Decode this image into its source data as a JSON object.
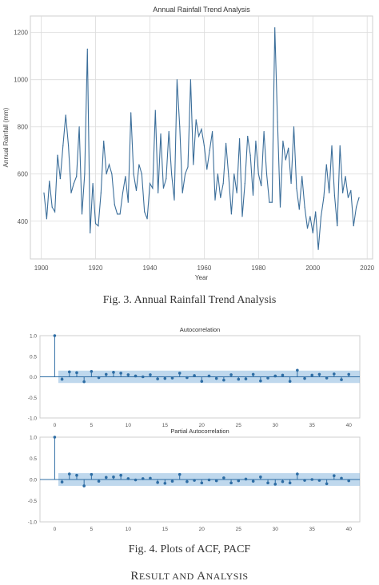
{
  "chart_data": [
    {
      "type": "line",
      "title": "Annual Rainfall Trend Analysis",
      "xlabel": "Year",
      "ylabel": "Annual Rainfall (mm)",
      "xlim": [
        1896,
        2022
      ],
      "ylim": [
        240,
        1270
      ],
      "xticks": [
        1900,
        1920,
        1940,
        1960,
        1980,
        2000,
        2020
      ],
      "yticks": [
        400,
        600,
        800,
        1000,
        1200
      ],
      "grid": true,
      "color": "#3b6e9a",
      "series": [
        {
          "x": [
            1901,
            1902,
            1903,
            1904,
            1905,
            1906,
            1907,
            1908,
            1909,
            1910,
            1911,
            1912,
            1913,
            1914,
            1915,
            1916,
            1917,
            1918,
            1919,
            1920,
            1921,
            1922,
            1923,
            1924,
            1925,
            1926,
            1927,
            1928,
            1929,
            1930,
            1931,
            1932,
            1933,
            1934,
            1935,
            1936,
            1937,
            1938,
            1939,
            1940,
            1941,
            1942,
            1943,
            1944,
            1945,
            1946,
            1947,
            1948,
            1949,
            1950,
            1951,
            1952,
            1953,
            1954,
            1955,
            1956,
            1957,
            1958,
            1959,
            1960,
            1961,
            1962,
            1963,
            1964,
            1965,
            1966,
            1967,
            1968,
            1969,
            1970,
            1971,
            1972,
            1973,
            1974,
            1975,
            1976,
            1977,
            1978,
            1979,
            1980,
            1981,
            1982,
            1983,
            1984,
            1985,
            1986,
            1987,
            1988,
            1989,
            1990,
            1991,
            1992,
            1993,
            1994,
            1995,
            1996,
            1997,
            1998,
            1999,
            2000,
            2001,
            2002,
            2003,
            2004,
            2005,
            2006,
            2007,
            2008,
            2009,
            2010,
            2011,
            2012,
            2013,
            2014,
            2015,
            2016,
            2017
          ],
          "values": [
            520,
            410,
            570,
            460,
            440,
            680,
            580,
            720,
            850,
            720,
            520,
            560,
            590,
            800,
            430,
            600,
            1130,
            350,
            560,
            390,
            380,
            520,
            740,
            600,
            640,
            600,
            470,
            430,
            430,
            520,
            590,
            480,
            860,
            600,
            530,
            640,
            600,
            440,
            410,
            560,
            540,
            870,
            520,
            770,
            540,
            580,
            780,
            600,
            490,
            1000,
            800,
            520,
            600,
            630,
            1000,
            640,
            830,
            760,
            790,
            720,
            620,
            700,
            780,
            490,
            600,
            500,
            560,
            730,
            590,
            430,
            600,
            520,
            750,
            420,
            560,
            760,
            680,
            510,
            740,
            600,
            550,
            780,
            600,
            480,
            480,
            1220,
            820,
            460,
            740,
            660,
            710,
            560,
            800,
            540,
            450,
            590,
            460,
            370,
            420,
            350,
            440,
            280,
            420,
            500,
            640,
            520,
            720,
            510,
            380,
            720,
            520,
            590,
            500,
            530,
            380,
            460,
            500
          ]
        }
      ]
    },
    {
      "type": "bar",
      "title": "Autocorrelation",
      "xlim": [
        -2,
        41.5
      ],
      "ylim": [
        -1.0,
        1.0
      ],
      "xticks": [
        0,
        5,
        10,
        15,
        20,
        25,
        30,
        35,
        40
      ],
      "yticks": [
        -1.0,
        -0.5,
        0.0,
        0.5,
        1.0
      ],
      "confidence_band": 0.15,
      "lags": [
        0,
        1,
        2,
        3,
        4,
        5,
        6,
        7,
        8,
        9,
        10,
        11,
        12,
        13,
        14,
        15,
        16,
        17,
        18,
        19,
        20,
        21,
        22,
        23,
        24,
        25,
        26,
        27,
        28,
        29,
        30,
        31,
        32,
        33,
        34,
        35,
        36,
        37,
        38,
        39,
        40
      ],
      "values": [
        1.0,
        -0.06,
        0.12,
        0.1,
        -0.12,
        0.13,
        -0.02,
        0.06,
        0.11,
        0.09,
        0.05,
        0.02,
        0.0,
        0.05,
        -0.05,
        -0.04,
        -0.03,
        0.09,
        -0.02,
        0.03,
        -0.11,
        0.02,
        -0.04,
        -0.08,
        0.05,
        -0.06,
        -0.05,
        0.06,
        -0.1,
        -0.03,
        0.02,
        0.04,
        -0.11,
        0.16,
        -0.04,
        0.04,
        0.06,
        -0.03,
        0.07,
        -0.07,
        0.06
      ]
    },
    {
      "type": "bar",
      "title": "Partial Autocorrelation",
      "xlim": [
        -2,
        41.5
      ],
      "ylim": [
        -1.0,
        1.0
      ],
      "xticks": [
        0,
        5,
        10,
        15,
        20,
        25,
        30,
        35,
        40
      ],
      "yticks": [
        -1.0,
        -0.5,
        0.0,
        0.5,
        1.0
      ],
      "confidence_band": 0.15,
      "lags": [
        0,
        1,
        2,
        3,
        4,
        5,
        6,
        7,
        8,
        9,
        10,
        11,
        12,
        13,
        14,
        15,
        16,
        17,
        18,
        19,
        20,
        21,
        22,
        23,
        24,
        25,
        26,
        27,
        28,
        29,
        30,
        31,
        32,
        33,
        34,
        35,
        36,
        37,
        38,
        39,
        40
      ],
      "values": [
        1.0,
        -0.06,
        0.13,
        0.1,
        -0.15,
        0.12,
        -0.04,
        0.05,
        0.06,
        0.1,
        0.02,
        -0.01,
        0.02,
        0.03,
        -0.07,
        -0.09,
        -0.04,
        0.12,
        -0.05,
        -0.02,
        -0.08,
        -0.01,
        -0.03,
        0.04,
        -0.08,
        -0.03,
        0.01,
        -0.04,
        0.06,
        -0.08,
        -0.11,
        -0.05,
        -0.08,
        0.13,
        -0.02,
        0.0,
        -0.02,
        -0.1,
        0.09,
        0.03,
        -0.03
      ]
    }
  ],
  "captions": {
    "fig3": "Fig. 3.   Annual Rainfall Trend Analysis",
    "fig4": "Fig. 4.   Plots of ACF, PACF"
  },
  "section": {
    "r": "R",
    "esult": "ESULT AND ",
    "a": "A",
    "nalysis": "NALYSIS"
  }
}
